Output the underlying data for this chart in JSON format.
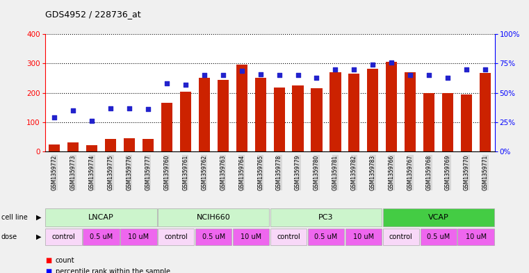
{
  "title": "GDS4952 / 228736_at",
  "samples": [
    "GSM1359772",
    "GSM1359773",
    "GSM1359774",
    "GSM1359775",
    "GSM1359776",
    "GSM1359777",
    "GSM1359760",
    "GSM1359761",
    "GSM1359762",
    "GSM1359763",
    "GSM1359764",
    "GSM1359765",
    "GSM1359778",
    "GSM1359779",
    "GSM1359780",
    "GSM1359781",
    "GSM1359782",
    "GSM1359783",
    "GSM1359766",
    "GSM1359767",
    "GSM1359768",
    "GSM1359769",
    "GSM1359770",
    "GSM1359771"
  ],
  "counts": [
    25,
    32,
    22,
    42,
    45,
    42,
    165,
    205,
    250,
    245,
    296,
    252,
    218,
    225,
    215,
    270,
    265,
    283,
    305,
    270,
    200,
    200,
    195,
    268
  ],
  "percentiles": [
    29,
    35,
    26,
    37,
    37,
    36,
    58,
    57,
    65,
    65,
    69,
    66,
    65,
    65,
    63,
    70,
    70,
    74,
    76,
    65,
    65,
    63,
    70,
    70
  ],
  "cell_lines": [
    "LNCAP",
    "LNCAP",
    "LNCAP",
    "LNCAP",
    "LNCAP",
    "LNCAP",
    "NCIH660",
    "NCIH660",
    "NCIH660",
    "NCIH660",
    "NCIH660",
    "NCIH660",
    "PC3",
    "PC3",
    "PC3",
    "PC3",
    "PC3",
    "PC3",
    "VCAP",
    "VCAP",
    "VCAP",
    "VCAP",
    "VCAP",
    "VCAP"
  ],
  "doses": [
    "control",
    "control",
    "0.5 uM",
    "0.5 uM",
    "10 uM",
    "10 uM",
    "control",
    "control",
    "0.5 uM",
    "0.5 uM",
    "10 uM",
    "10 uM",
    "control",
    "control",
    "0.5 uM",
    "0.5 uM",
    "10 uM",
    "10 uM",
    "control",
    "control",
    "0.5 uM",
    "0.5 uM",
    "10 uM",
    "10 uM"
  ],
  "cell_line_groups": [
    {
      "label": "LNCAP",
      "start": 0,
      "end": 6,
      "color": "#ccf5cc"
    },
    {
      "label": "NCIH660",
      "start": 6,
      "end": 12,
      "color": "#ccf5cc"
    },
    {
      "label": "PC3",
      "start": 12,
      "end": 18,
      "color": "#ccf5cc"
    },
    {
      "label": "VCAP",
      "start": 18,
      "end": 24,
      "color": "#44cc44"
    }
  ],
  "dose_colors": {
    "control": "#f8d8f8",
    "0.5 uM": "#ee66ee",
    "10 uM": "#ee66ee"
  },
  "bar_color": "#cc2200",
  "dot_color": "#2222cc",
  "ylim_left": [
    0,
    400
  ],
  "ylim_right": [
    0,
    100
  ],
  "yticks_left": [
    0,
    100,
    200,
    300,
    400
  ],
  "yticks_right": [
    0,
    25,
    50,
    75,
    100
  ],
  "fig_bg": "#f0f0f0",
  "plot_bg": "#ffffff",
  "xticklabel_bg": "#d8d8d8"
}
